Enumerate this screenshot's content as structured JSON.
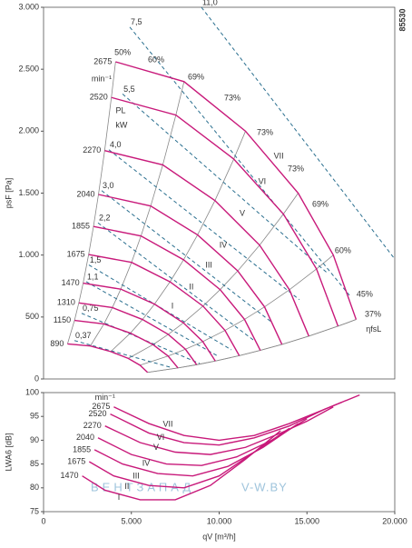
{
  "chart_data": [
    {
      "type": "line",
      "ylabel": "psF [Pa]",
      "code": "85530",
      "xlim": [
        0,
        20000
      ],
      "ylim": [
        0,
        3000
      ],
      "yticks": [
        0,
        500,
        {
          "value": 1000,
          "label": "1.000"
        },
        {
          "value": 1500,
          "label": "1.500"
        },
        {
          "value": 2000,
          "label": "2.000"
        },
        {
          "value": 2500,
          "label": "2.500"
        },
        {
          "value": 3000,
          "label": "3.000"
        }
      ],
      "series": [
        {
          "name": "2675",
          "color": "#c8197a",
          "x": [
            4100,
            8000,
            11500,
            14500,
            16500,
            17800
          ],
          "values": [
            2560,
            2400,
            2000,
            1500,
            1000,
            480
          ]
        },
        {
          "name": "2520",
          "color": "#c8197a",
          "x": [
            3862,
            7536,
            10833,
            13659,
            15543,
            16768
          ],
          "values": [
            2272,
            2130,
            1775,
            1331,
            888,
            426
          ]
        },
        {
          "name": "2270",
          "color": "#c8197a",
          "x": [
            3479,
            6789,
            9759,
            12305,
            14002,
            15105
          ],
          "values": [
            1843,
            1728,
            1440,
            1080,
            720,
            346
          ]
        },
        {
          "name": "2040",
          "color": "#c8197a",
          "x": [
            3127,
            6101,
            8770,
            11058,
            12583,
            13574
          ],
          "values": [
            1489,
            1396,
            1163,
            872,
            582,
            279
          ]
        },
        {
          "name": "1855",
          "color": "#c8197a",
          "x": [
            2843,
            5548,
            7975,
            10056,
            11443,
            12344
          ],
          "values": [
            1231,
            1154,
            962,
            721,
            481,
            231
          ]
        },
        {
          "name": "1675",
          "color": "#c8197a",
          "x": [
            2567,
            5010,
            7201,
            9080,
            10332,
            11146
          ],
          "values": [
            1004,
            941,
            784,
            588,
            392,
            188
          ]
        },
        {
          "name": "1470",
          "color": "#c8197a",
          "x": [
            2253,
            4396,
            6319,
            7968,
            9067,
            9781
          ],
          "values": [
            773,
            725,
            604,
            453,
            302,
            145
          ]
        },
        {
          "name": "1310",
          "color": "#c8197a",
          "x": [
            2008,
            3918,
            5632,
            7101,
            8080,
            8717
          ],
          "values": [
            614,
            576,
            480,
            360,
            240,
            115
          ]
        },
        {
          "name": "1150",
          "color": "#c8197a",
          "x": [
            1763,
            3439,
            4944,
            6234,
            7093,
            7652
          ],
          "values": [
            473,
            444,
            370,
            277,
            185,
            89
          ]
        },
        {
          "name": "890",
          "color": "#c8197a",
          "x": [
            1364,
            2662,
            3826,
            4824,
            5490,
            5922
          ],
          "values": [
            283,
            266,
            221,
            166,
            111,
            53
          ]
        }
      ],
      "power_lines": {
        "color": "#2a6f8f",
        "lines": [
          {
            "label": "11,0",
            "x": [
              8990,
              20000
            ],
            "values": [
              3000,
              968
            ]
          },
          {
            "label": "7,5",
            "x": [
              4910,
              17420
            ],
            "values": [
              2840,
              675
            ]
          },
          {
            "label": "5,5",
            "x": [
              4500,
              16120
            ],
            "values": [
              2300,
              860
            ]
          },
          {
            "label": "4,0",
            "x": [
              3720,
              14570
            ],
            "values": [
              1850,
              640
            ]
          },
          {
            "label": "3,0",
            "x": [
              3310,
              13020
            ],
            "values": [
              1520,
              455
            ]
          },
          {
            "label": "2,2",
            "x": [
              3100,
              11990
            ],
            "values": [
              1260,
              310
            ]
          },
          {
            "label": "1,5",
            "x": [
              2580,
              10700
            ],
            "values": [
              920,
              235
            ]
          },
          {
            "label": "1,1",
            "x": [
              2430,
              9920
            ],
            "values": [
              785,
              185
            ]
          },
          {
            "label": "0,75",
            "x": [
              2170,
              8890
            ],
            "values": [
              530,
              125
            ]
          },
          {
            "label": "0,37",
            "x": [
              1760,
              7340
            ],
            "values": [
              310,
              90
            ]
          }
        ]
      },
      "label_groups": [
        {
          "color": "#c8197a",
          "items": [
            {
              "text": "VII",
              "x": 13390,
              "y": 1797
            },
            {
              "text": "VI",
              "x": 12450,
              "y": 1592
            },
            {
              "text": "V",
              "x": 11320,
              "y": 1335
            },
            {
              "text": "IV",
              "x": 10230,
              "y": 1078
            },
            {
              "text": "III",
              "x": 9410,
              "y": 917
            },
            {
              "text": "II",
              "x": 8420,
              "y": 741
            },
            {
              "text": "I",
              "x": 7340,
              "y": 587
            },
            {
              "text": "min⁻¹",
              "x": 3310,
              "y": 2421
            }
          ]
        },
        {
          "color": "#2a6f8f",
          "items": [
            {
              "text": "PL",
              "x": 4390,
              "y": 2164
            },
            {
              "text": "kW",
              "x": 4440,
              "y": 2047
            }
          ]
        },
        {
          "color": "#444444",
          "items": [
            {
              "text": "50%",
              "x": 4500,
              "y": 2634
            },
            {
              "text": "60%",
              "x": 6410,
              "y": 2575
            },
            {
              "text": "69%",
              "x": 8680,
              "y": 2436
            },
            {
              "text": "73%",
              "x": 10750,
              "y": 2267
            },
            {
              "text": "73%",
              "x": 12610,
              "y": 1988
            },
            {
              "text": "73%",
              "x": 14370,
              "y": 1695
            },
            {
              "text": "69%",
              "x": 15760,
              "y": 1409
            },
            {
              "text": "60%",
              "x": 17050,
              "y": 1034
            },
            {
              "text": "45%",
              "x": 18290,
              "y": 682
            },
            {
              "text": "37%",
              "x": 18760,
              "y": 521
            },
            {
              "text": "ηfsL",
              "x": 18800,
              "y": 400
            }
          ]
        }
      ]
    },
    {
      "type": "line",
      "ylabel": "LWA6 [dB]",
      "xlabel": "qV [m³/h]",
      "xlim": [
        0,
        20000
      ],
      "ylim": [
        75,
        100
      ],
      "xticks": [
        0,
        {
          "value": 5000,
          "label": "5.000"
        },
        {
          "value": 10000,
          "label": "10.000"
        },
        {
          "value": 15000,
          "label": "15.000"
        },
        {
          "value": 20000,
          "label": "20.000"
        }
      ],
      "yticks": [
        75,
        80,
        85,
        90,
        95,
        100
      ],
      "series": [
        {
          "name": "2675",
          "color": "#c8197a",
          "x": [
            4000,
            6000,
            8000,
            10000,
            12000,
            14000,
            16000,
            18000
          ],
          "values": [
            97,
            93.5,
            91,
            90,
            91,
            93.5,
            96.5,
            99.5
          ]
        },
        {
          "name": "2520",
          "color": "#c8197a",
          "x": [
            3800,
            6000,
            8000,
            10000,
            12000,
            14000,
            16000,
            17000
          ],
          "values": [
            95.5,
            91.5,
            89.5,
            89,
            90.5,
            93,
            96.5,
            98
          ]
        },
        {
          "name": "2270",
          "color": "#c8197a",
          "x": [
            3500,
            5500,
            7500,
            9500,
            11500,
            13500,
            15000,
            16500
          ],
          "values": [
            93,
            89.5,
            87.5,
            87,
            88.5,
            91.5,
            94,
            97
          ]
        },
        {
          "name": "2040",
          "color": "#c8197a",
          "x": [
            3100,
            5000,
            7000,
            9000,
            11000,
            13000,
            15000
          ],
          "values": [
            90.5,
            87,
            85,
            84.7,
            86.5,
            90,
            94.5
          ]
        },
        {
          "name": "1855",
          "color": "#c8197a",
          "x": [
            2900,
            4500,
            6500,
            8500,
            10500,
            12500,
            14500
          ],
          "values": [
            88,
            85,
            83,
            82.5,
            84.5,
            88.5,
            93.5
          ]
        },
        {
          "name": "1675",
          "color": "#c8197a",
          "x": [
            2600,
            4000,
            6000,
            8000,
            10000,
            12000,
            14000
          ],
          "values": [
            85.5,
            82.5,
            80.5,
            80,
            82.5,
            87.5,
            92.5
          ]
        },
        {
          "name": "1470",
          "color": "#c8197a",
          "x": [
            2200,
            3500,
            5500,
            7500,
            9500,
            11500,
            13500
          ],
          "values": [
            82.5,
            79.5,
            77.5,
            77.5,
            80.5,
            86,
            92
          ]
        }
      ],
      "label_groups": [
        {
          "color": "#c8197a",
          "items": [
            {
              "text": "min⁻¹",
              "x": 3500,
              "y": 98.9
            },
            {
              "text": "VII",
              "x": 7080,
              "y": 93.3
            },
            {
              "text": "VI",
              "x": 6670,
              "y": 90.5
            },
            {
              "text": "V",
              "x": 6410,
              "y": 88.4
            },
            {
              "text": "IV",
              "x": 5840,
              "y": 85.1
            },
            {
              "text": "III",
              "x": 5270,
              "y": 82.4
            },
            {
              "text": "II",
              "x": 4750,
              "y": 80.2
            },
            {
              "text": "I",
              "x": 4290,
              "y": 77.9
            }
          ]
        }
      ]
    }
  ],
  "watermark": [
    "ВЕНТЗАПАД",
    "V-W.BY"
  ]
}
